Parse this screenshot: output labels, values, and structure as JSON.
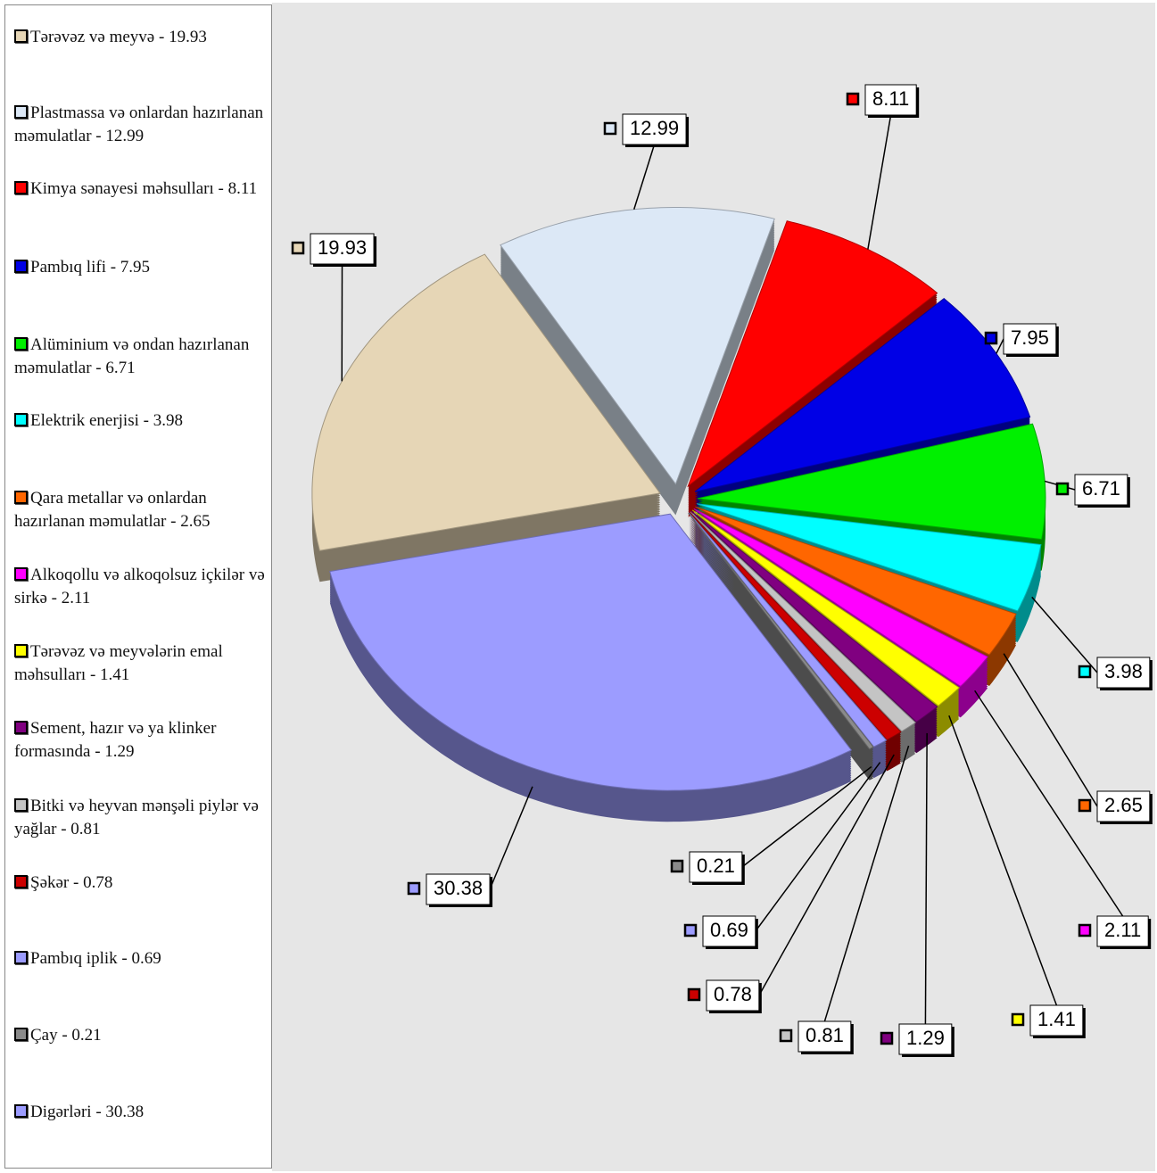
{
  "chart_data": {
    "type": "pie",
    "categories": [
      "Tərəvəz və meyvə  - 19.93",
      "Plastmassa və onlardan hazırlanan məmulatlar  - 12.99",
      "Kimya sənayesi məhsulları  - 8.11",
      "Pambıq lifi  - 7.95",
      "Alüminium və ondan hazırlanan məmulatlar  - 6.71",
      "Elektrik enerjisi  - 3.98",
      "Qara metallar və onlardan hazırlanan məmulatlar  - 2.65",
      "Alkoqollu və alkoqolsuz içkilər və sirkə  - 2.11",
      "Tərəvəz və meyvələrin emal məhsulları  - 1.41",
      "Sement, hazır və ya klinker formasında  - 1.29",
      "Bitki və heyvan mənşəli piylər və yağlar  - 0.81",
      "Şəkər  - 0.78",
      "Pambıq iplik  - 0.69",
      "Çay  - 0.21",
      "Digərləri - 30.38"
    ],
    "values": [
      19.93,
      12.99,
      8.11,
      7.95,
      6.71,
      3.98,
      2.65,
      2.11,
      1.41,
      1.29,
      0.81,
      0.78,
      0.69,
      0.21,
      30.38
    ],
    "colors": [
      "#e6d6b6",
      "#dce8f6",
      "#ff0000",
      "#0000e6",
      "#00f000",
      "#00ffff",
      "#ff6600",
      "#ff00ff",
      "#ffff00",
      "#800080",
      "#c4c4c4",
      "#cc0000",
      "#9c9cff",
      "#8a8a8a",
      "#9c9cff"
    ]
  }
}
